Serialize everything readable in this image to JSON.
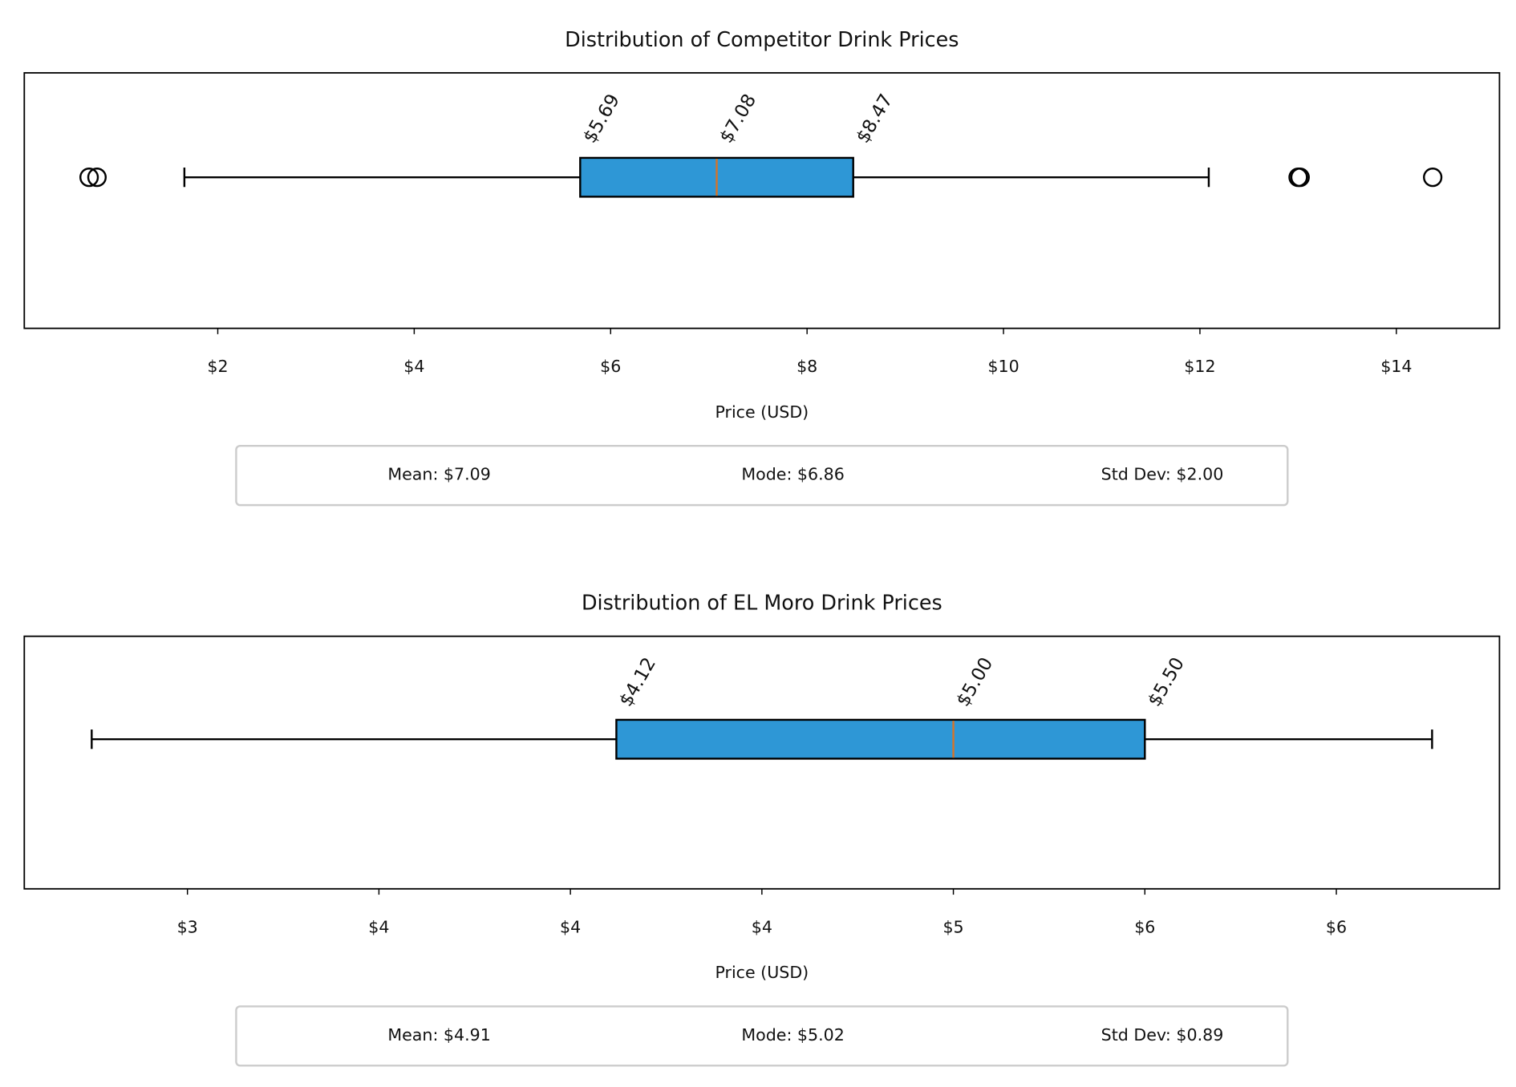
{
  "chart_data": [
    {
      "type": "box",
      "title": "Distribution of Competitor Drink Prices",
      "xlabel": "Price (USD)",
      "xlim": [
        0.03,
        15.05
      ],
      "xticks": [
        {
          "value": 2,
          "label": "$2"
        },
        {
          "value": 4,
          "label": "$4"
        },
        {
          "value": 6,
          "label": "$6"
        },
        {
          "value": 8,
          "label": "$8"
        },
        {
          "value": 10,
          "label": "$10"
        },
        {
          "value": 12,
          "label": "$12"
        },
        {
          "value": 14,
          "label": "$14"
        }
      ],
      "values": [
        5.69,
        7.08,
        8.47
      ],
      "value_labels": [
        "$5.69",
        "$7.08",
        "$8.47"
      ],
      "whiskers": [
        1.66,
        12.09
      ],
      "outliers": [
        0.69,
        0.77,
        13.0,
        13.02,
        14.37
      ],
      "color": "#2e97d6",
      "median_color": "#d4742a",
      "stats": [
        "Mean: $7.09",
        "Mode: $6.86",
        "Std Dev: $2.00"
      ]
    },
    {
      "type": "box",
      "title": "Distribution of EL Moro Drink Prices",
      "xlabel": "Price (USD)",
      "xlim": [
        2.574,
        6.426
      ],
      "xticks": [
        {
          "value": 3,
          "label": "$3"
        },
        {
          "value": 3.5,
          "label": "$4"
        },
        {
          "value": 4,
          "label": "$4"
        },
        {
          "value": 4.5,
          "label": "$4"
        },
        {
          "value": 5,
          "label": "$5"
        },
        {
          "value": 5.5,
          "label": "$6"
        },
        {
          "value": 6,
          "label": "$6"
        }
      ],
      "values": [
        4.12,
        5.0,
        5.5
      ],
      "value_labels": [
        "$4.12",
        "$5.00",
        "$5.50"
      ],
      "whiskers": [
        2.75,
        6.25
      ],
      "outliers": [],
      "color": "#2e97d6",
      "median_color": "#d4742a",
      "stats": [
        "Mean: $4.91",
        "Mode: $5.02",
        "Std Dev: $0.89"
      ]
    }
  ]
}
